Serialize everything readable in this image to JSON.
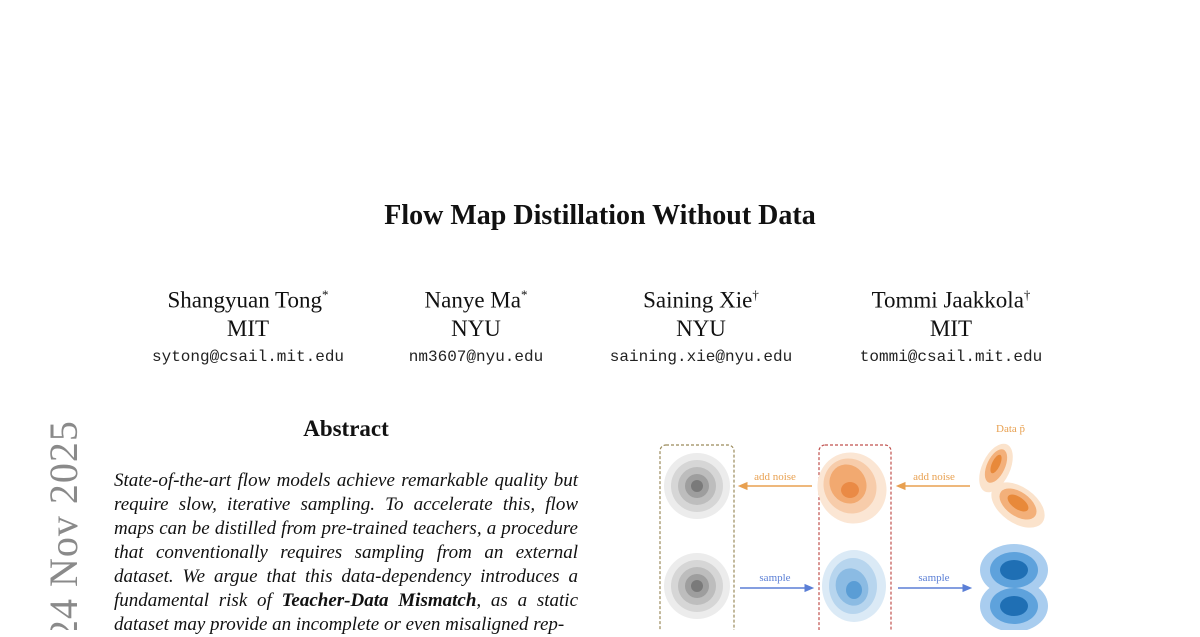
{
  "side_stamp": "24 Nov 2025",
  "title": "Flow Map Distillation Without Data",
  "authors": [
    {
      "name": "Shangyuan Tong",
      "mark": "*",
      "affiliation": "MIT",
      "email": "sytong@csail.mit.edu"
    },
    {
      "name": "Nanye Ma",
      "mark": "*",
      "affiliation": "NYU",
      "email": "nm3607@nyu.edu"
    },
    {
      "name": "Saining Xie",
      "mark": "†",
      "affiliation": "NYU",
      "email": "saining.xie@nyu.edu"
    },
    {
      "name": "Tommi Jaakkola",
      "mark": "†",
      "affiliation": "MIT",
      "email": "tommi@csail.mit.edu"
    }
  ],
  "abstract": {
    "heading": "Abstract",
    "text_before": "State-of-the-art flow models achieve remarkable quality but require slow, iterative sampling. To accelerate this, flow maps can be distilled from pre-trained teachers, a procedure that conventionally requires sampling from an external dataset. We argue that this data-dependency introduces a fundamental risk of ",
    "emphasis": "Teacher-Data Mismatch",
    "text_after": ", as a static dataset may provide an incomplete or even misaligned rep-"
  },
  "figure": {
    "data_label": "Data p̃",
    "arrow_top_left": "add noise",
    "arrow_top_right": "add noise",
    "arrow_bottom_left": "sample",
    "arrow_bottom_right": "sample",
    "colors": {
      "gray": "#7a7a7a",
      "orange": "#e8893a",
      "blue": "#2f86c9",
      "green_box": "#9a8a5a",
      "red_box": "#c0504d",
      "noise_arrow": "#e8a050",
      "sample_arrow": "#5b7fd6"
    }
  }
}
